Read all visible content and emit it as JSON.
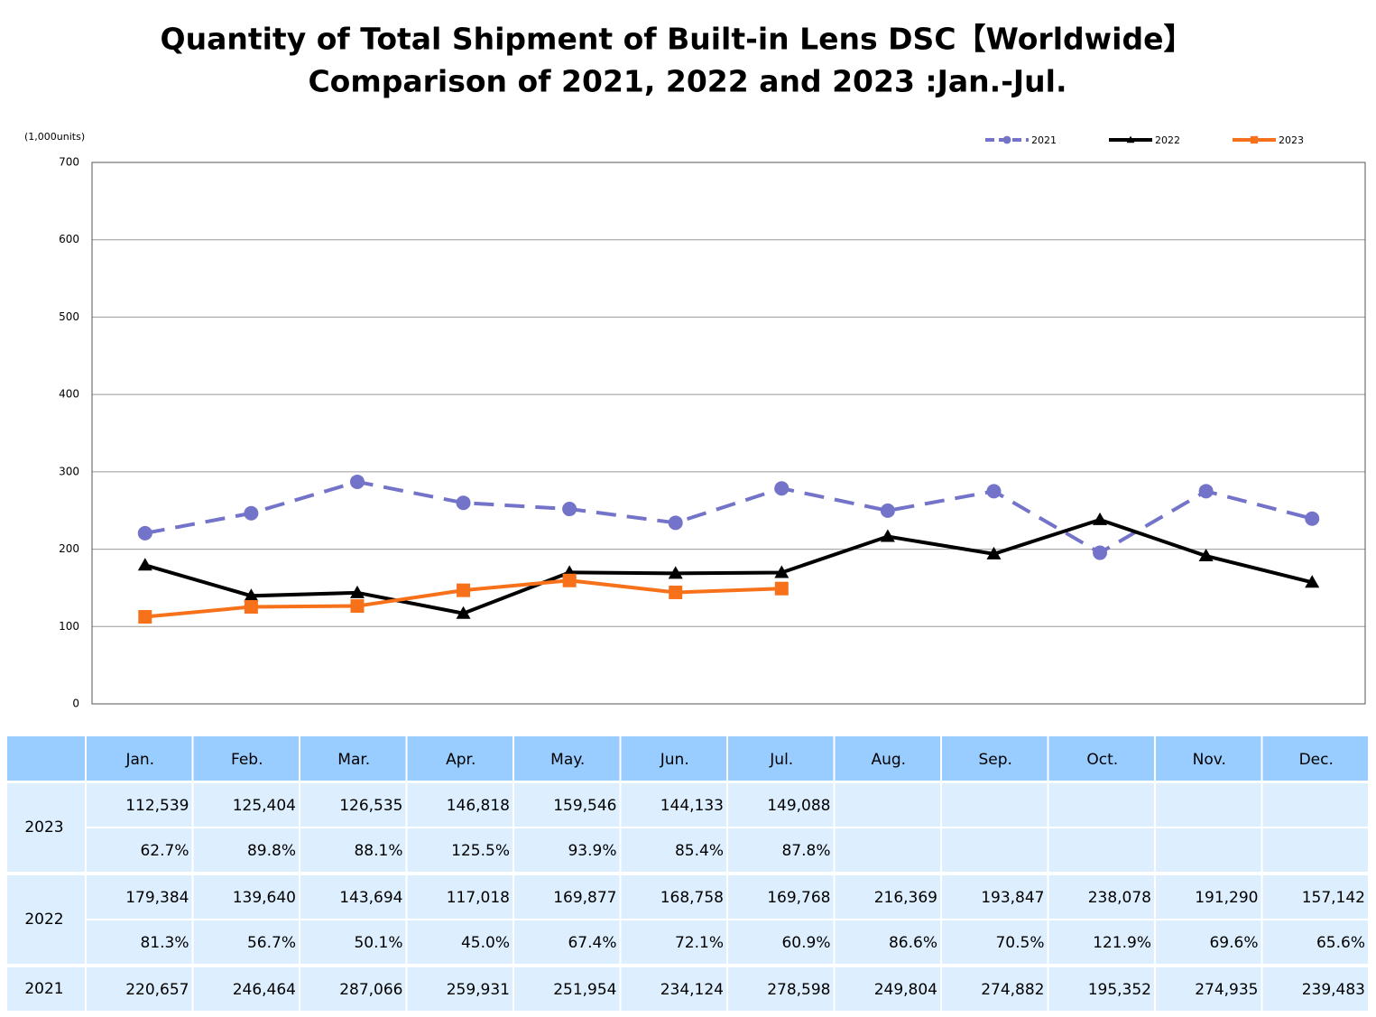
{
  "chart_data": {
    "type": "line",
    "title": "Quantity of Total Shipment of Built-in Lens DSC【Worldwide】",
    "subtitle": "Comparison of 2021, 2022 and 2023 :Jan.-Jul.",
    "y_unit": "(1,000units)",
    "categories": [
      "Jan.",
      "Feb.",
      "Mar.",
      "Apr.",
      "May.",
      "Jun.",
      "Jul.",
      "Aug.",
      "Sep.",
      "Oct.",
      "Nov.",
      "Dec."
    ],
    "ylim": [
      0,
      700
    ],
    "yticks": [
      0,
      100,
      200,
      300,
      400,
      500,
      600,
      700
    ],
    "grid": true,
    "legend": "top-right",
    "series": [
      {
        "name": "2021",
        "color": "#7373c9",
        "line_style": "dashed",
        "marker": "circle",
        "values": [
          220.657,
          246.464,
          287.066,
          259.931,
          251.954,
          234.124,
          278.598,
          249.804,
          274.882,
          195.352,
          274.935,
          239.483
        ],
        "value_labels": [
          "220,657",
          "246,464",
          "287,066",
          "259,931",
          "251,954",
          "234,124",
          "278,598",
          "249,804",
          "274,882",
          "195,352",
          "274,935",
          "239,483"
        ]
      },
      {
        "name": "2022",
        "color": "#000000",
        "line_style": "solid",
        "marker": "triangle",
        "values": [
          179.384,
          139.64,
          143.694,
          117.018,
          169.877,
          168.758,
          169.768,
          216.369,
          193.847,
          238.078,
          191.29,
          157.142
        ],
        "value_labels": [
          "179,384",
          "139,640",
          "143,694",
          "117,018",
          "169,877",
          "168,758",
          "169,768",
          "216,369",
          "193,847",
          "238,078",
          "191,290",
          "157,142"
        ],
        "ratio_labels": [
          "81.3%",
          "56.7%",
          "50.1%",
          "45.0%",
          "67.4%",
          "72.1%",
          "60.9%",
          "86.6%",
          "70.5%",
          "121.9%",
          "69.6%",
          "65.6%"
        ]
      },
      {
        "name": "2023",
        "color": "#f7711b",
        "line_style": "solid",
        "marker": "square",
        "values": [
          112.539,
          125.404,
          126.535,
          146.818,
          159.546,
          144.133,
          149.088,
          null,
          null,
          null,
          null,
          null
        ],
        "value_labels": [
          "112,539",
          "125,404",
          "126,535",
          "146,818",
          "159,546",
          "144,133",
          "149,088",
          null,
          null,
          null,
          null,
          null
        ],
        "ratio_labels": [
          "62.7%",
          "89.8%",
          "88.1%",
          "125.5%",
          "93.9%",
          "85.4%",
          "87.8%",
          null,
          null,
          null,
          null,
          null
        ]
      }
    ]
  }
}
